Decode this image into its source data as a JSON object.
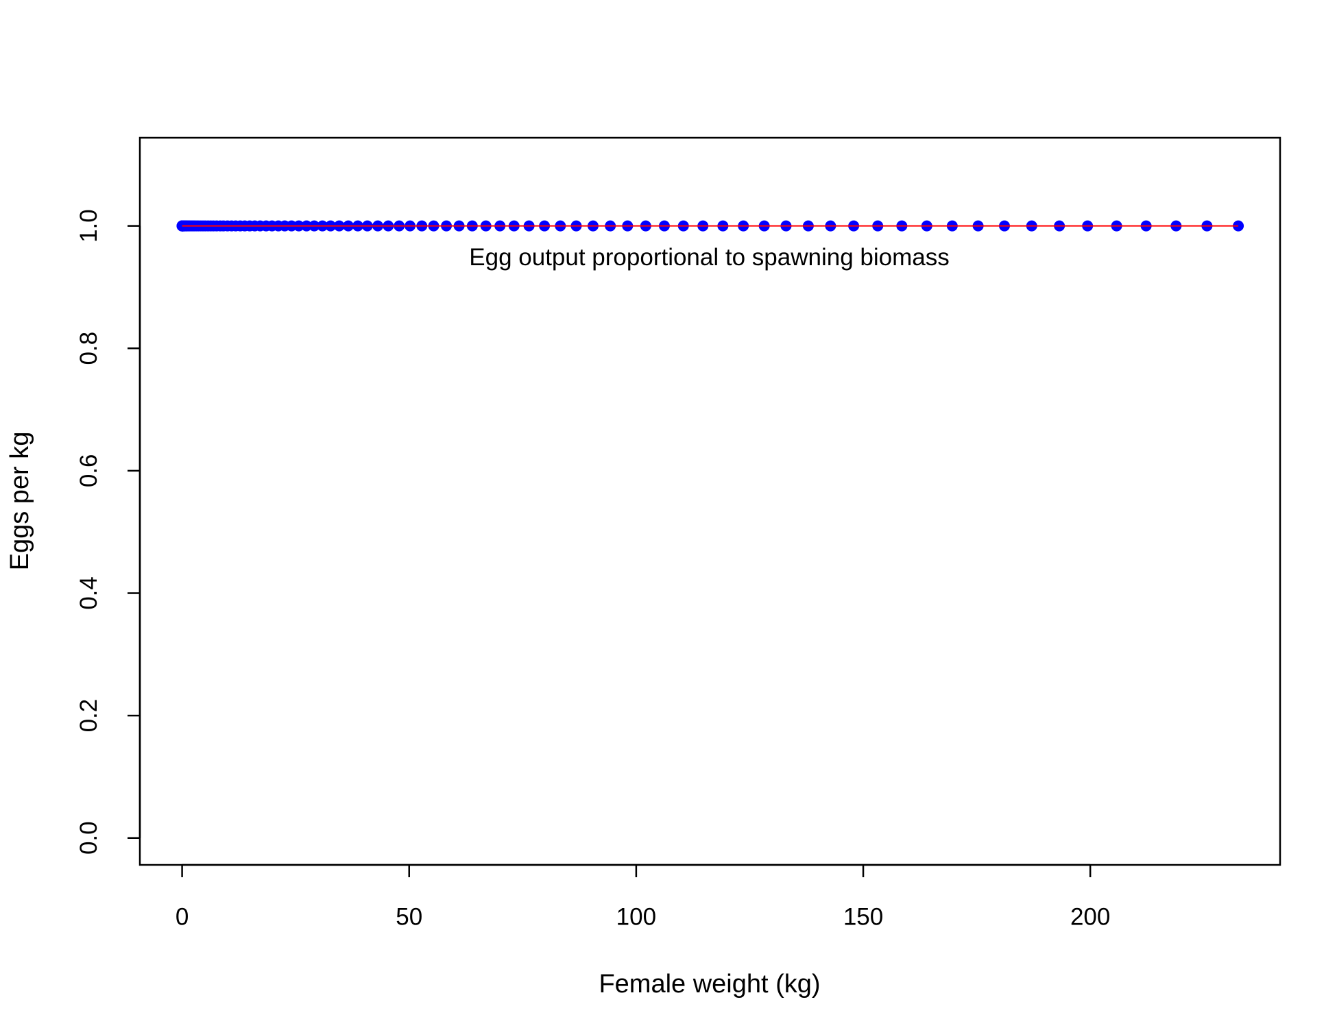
{
  "chart_data": {
    "type": "scatter",
    "xlabel": "Female weight (kg)",
    "ylabel": "Eggs per kg",
    "annotation": {
      "text": "Egg output proportional to spawning biomass",
      "x": 116.1,
      "y": 0.946
    },
    "x": [
      0,
      0.0,
      0.0,
      0.0,
      0.0,
      0.0,
      0.1,
      0.1,
      0.1,
      0.2,
      0.2,
      0.3,
      0.4,
      0.5,
      0.6,
      0.8,
      1.0,
      1.1,
      1.4,
      1.6,
      1.9,
      2.2,
      2.5,
      2.8,
      3.2,
      3.6,
      4.1,
      4.6,
      5.1,
      5.7,
      6.3,
      6.9,
      7.6,
      8.4,
      9.1,
      10.0,
      10.9,
      11.8,
      12.8,
      13.8,
      14.9,
      16.0,
      17.2,
      18.5,
      19.8,
      21.2,
      22.6,
      24.1,
      25.7,
      27.4,
      29.1,
      30.9,
      32.7,
      34.6,
      36.6,
      38.7,
      40.8,
      43.1,
      45.4,
      47.8,
      50.2,
      52.8,
      55.4,
      58.2,
      61.0,
      63.9,
      66.9,
      70.0,
      73.1,
      76.4,
      79.8,
      83.3,
      86.8,
      90.5,
      94.3,
      98.1,
      102.1,
      106.2,
      110.4,
      114.7,
      119.1,
      123.6,
      128.2,
      133.0,
      137.9,
      142.8,
      147.9,
      153.2,
      158.5,
      164.0,
      169.6,
      175.3,
      181.1,
      187.1,
      193.2,
      199.4,
      205.8,
      212.3,
      218.9,
      225.7,
      232.6
    ],
    "series": [
      {
        "color": "#0000ff",
        "marker": "circle",
        "values": [
          1,
          1,
          1,
          1,
          1,
          1,
          1,
          1,
          1,
          1,
          1,
          1,
          1,
          1,
          1,
          1,
          1,
          1,
          1,
          1,
          1,
          1,
          1,
          1,
          1,
          1,
          1,
          1,
          1,
          1,
          1,
          1,
          1,
          1,
          1,
          1,
          1,
          1,
          1,
          1,
          1,
          1,
          1,
          1,
          1,
          1,
          1,
          1,
          1,
          1,
          1,
          1,
          1,
          1,
          1,
          1,
          1,
          1,
          1,
          1,
          1,
          1,
          1,
          1,
          1,
          1,
          1,
          1,
          1,
          1,
          1,
          1,
          1,
          1,
          1,
          1,
          1,
          1,
          1,
          1,
          1,
          1,
          1,
          1,
          1,
          1,
          1,
          1,
          1,
          1,
          1,
          1,
          1,
          1,
          1,
          1,
          1,
          1,
          1,
          1,
          1
        ]
      },
      {
        "color": "#ff0000",
        "marker": "line",
        "values": [
          1,
          1,
          1,
          1,
          1,
          1,
          1,
          1,
          1,
          1,
          1,
          1,
          1,
          1,
          1,
          1,
          1,
          1,
          1,
          1,
          1,
          1,
          1,
          1,
          1,
          1,
          1,
          1,
          1,
          1,
          1,
          1,
          1,
          1,
          1,
          1,
          1,
          1,
          1,
          1,
          1,
          1,
          1,
          1,
          1,
          1,
          1,
          1,
          1,
          1,
          1,
          1,
          1,
          1,
          1,
          1,
          1,
          1,
          1,
          1,
          1,
          1,
          1,
          1,
          1,
          1,
          1,
          1,
          1,
          1,
          1,
          1,
          1,
          1,
          1,
          1,
          1,
          1,
          1,
          1,
          1,
          1,
          1,
          1,
          1,
          1,
          1,
          1,
          1,
          1,
          1,
          1,
          1,
          1,
          1,
          1,
          1,
          1,
          1,
          1,
          1
        ]
      }
    ],
    "xlim": [
      -9.3,
      241.8
    ],
    "ylim": [
      -0.044,
      1.144
    ],
    "xticks": [
      0,
      50,
      100,
      150,
      200
    ],
    "yticks": [
      {
        "value": 0,
        "label": "0.0"
      },
      0.2,
      0.4,
      0.6,
      0.8,
      {
        "value": 1,
        "label": "1.0"
      }
    ]
  }
}
